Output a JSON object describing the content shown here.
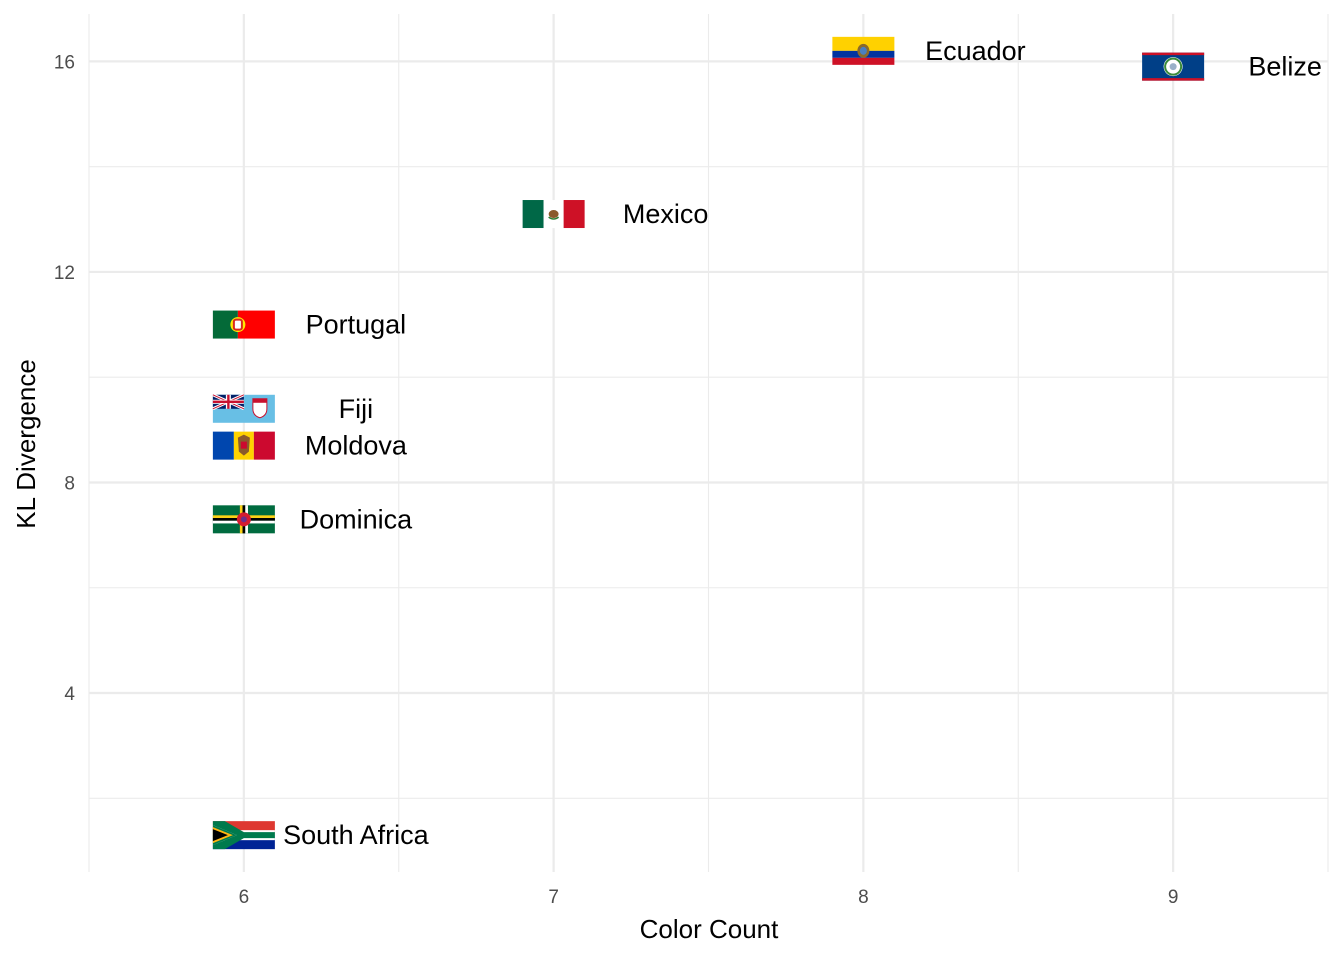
{
  "chart_data": {
    "type": "scatter",
    "title": "",
    "xlabel": "Color Count",
    "ylabel": "KL Divergence",
    "xlim": [
      5.5,
      9.5
    ],
    "ylim": [
      0.6,
      16.9
    ],
    "x_ticks": [
      6,
      7,
      8,
      9
    ],
    "y_ticks": [
      4,
      8,
      12,
      16
    ],
    "grid": true,
    "legend": "none",
    "points": [
      {
        "label": "Ecuador",
        "x": 8,
        "y": 16.2,
        "flag": "ecuador-flag-icon"
      },
      {
        "label": "Belize",
        "x": 9,
        "y": 15.9,
        "flag": "belize-flag-icon"
      },
      {
        "label": "Mexico",
        "x": 7,
        "y": 13.1,
        "flag": "mexico-flag-icon"
      },
      {
        "label": "Portugal",
        "x": 6,
        "y": 11.0,
        "flag": "portugal-flag-icon"
      },
      {
        "label": "Fiji",
        "x": 6,
        "y": 9.4,
        "flag": "fiji-flag-icon"
      },
      {
        "label": "Moldova",
        "x": 6,
        "y": 8.7,
        "flag": "moldova-flag-icon"
      },
      {
        "label": "Dominica",
        "x": 6,
        "y": 7.3,
        "flag": "dominica-flag-icon"
      },
      {
        "label": "South Africa",
        "x": 6,
        "y": 1.3,
        "flag": "south-africa-flag-icon"
      }
    ]
  }
}
